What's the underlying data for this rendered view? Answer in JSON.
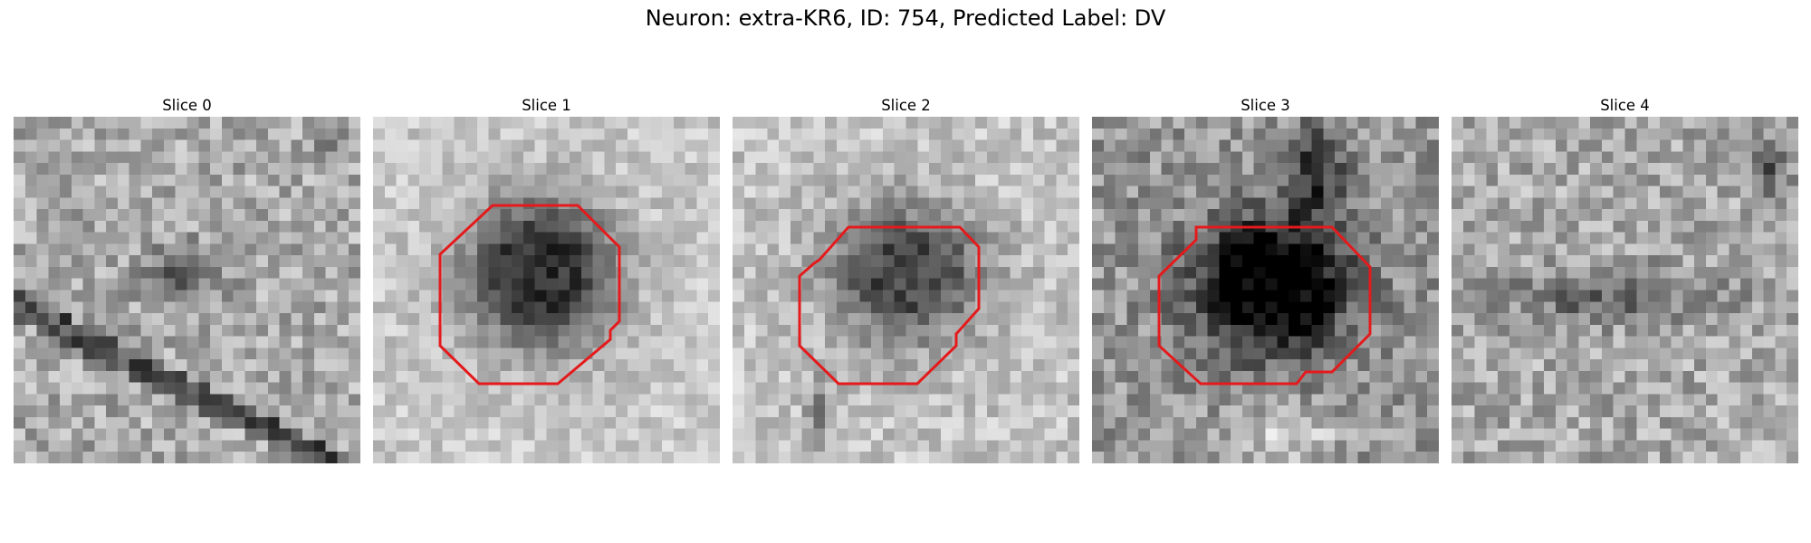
{
  "figure": {
    "title": "Neuron: extra-KR6, ID: 754, Predicted Label: DV"
  },
  "slices": [
    {
      "title": "Slice 0"
    },
    {
      "title": "Slice 1"
    },
    {
      "title": "Slice 2"
    },
    {
      "title": "Slice 3"
    },
    {
      "title": "Slice 4"
    }
  ],
  "colors": {
    "contour": "#e41a1c",
    "colormap": "gray"
  }
}
